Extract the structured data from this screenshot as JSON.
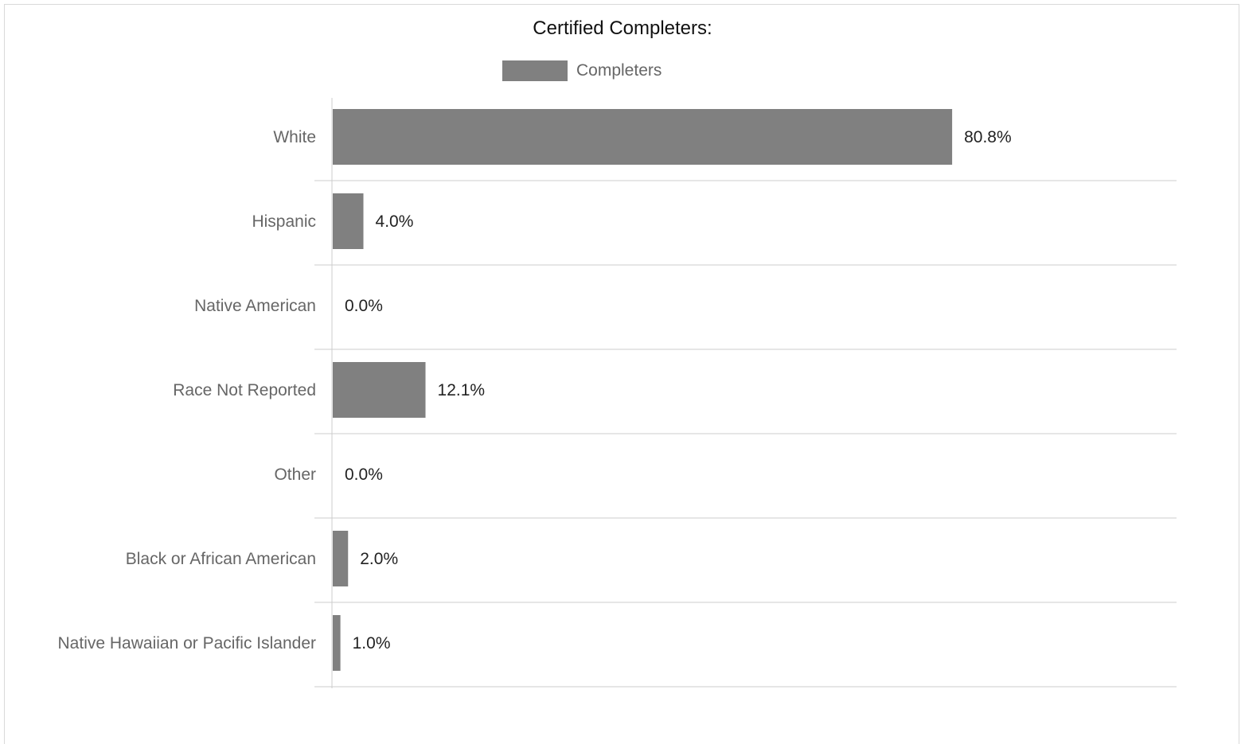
{
  "chart_data": {
    "type": "bar",
    "orientation": "horizontal",
    "title": "Certified Completers:",
    "legend": {
      "position": "top",
      "entries": [
        "Completers"
      ]
    },
    "series": [
      {
        "name": "Completers",
        "color": "#808080",
        "values": [
          80.8,
          4.0,
          0.0,
          12.1,
          0.0,
          2.0,
          1.0
        ]
      }
    ],
    "categories": [
      "White",
      "Hispanic",
      "Native American",
      "Race Not Reported",
      "Other",
      "Black or African American",
      "Native Hawaiian or Pacific Islander"
    ],
    "value_labels": [
      "80.8%",
      "4.0%",
      "0.0%",
      "12.1%",
      "0.0%",
      "2.0%",
      "1.0%"
    ],
    "xlabel": "",
    "ylabel": "",
    "xlim": [
      0,
      110
    ],
    "grid": true,
    "colors": {
      "bar": "#808080",
      "grid": "#e6e6e6",
      "axis": "#cccccc"
    }
  }
}
